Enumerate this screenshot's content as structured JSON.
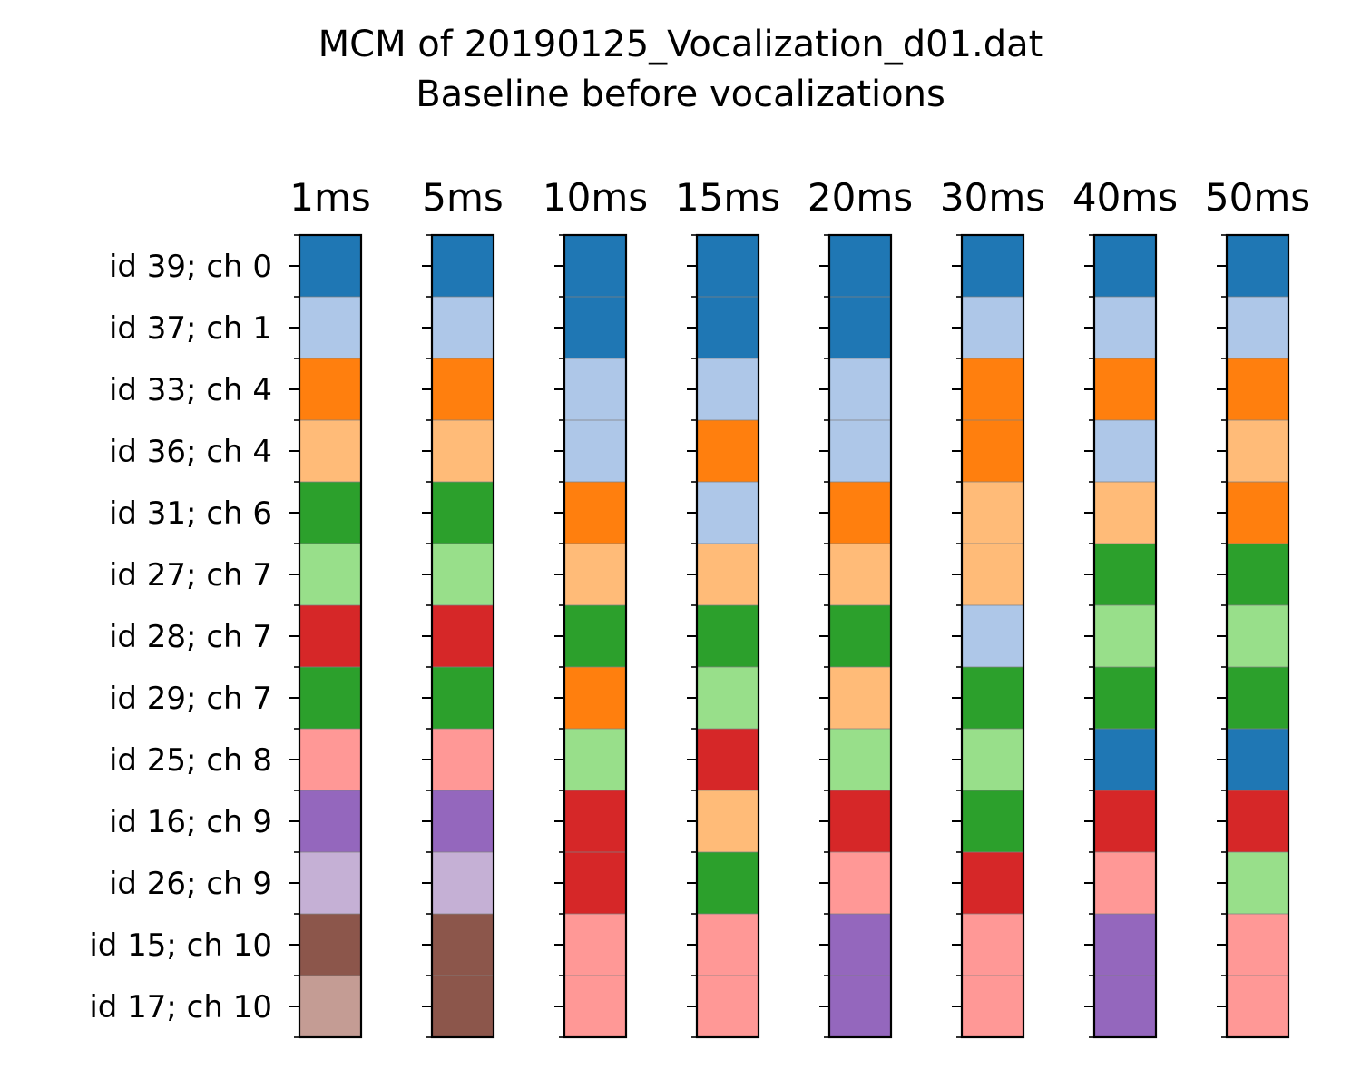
{
  "chart_data": {
    "type": "heatmap",
    "title_lines": [
      "MCM of 20190125_Vocalization_d01.dat",
      "Baseline before vocalizations"
    ],
    "columns": [
      "1ms",
      "5ms",
      "10ms",
      "15ms",
      "20ms",
      "30ms",
      "40ms",
      "50ms"
    ],
    "rows": [
      "id 39; ch 0",
      "id 37; ch 1",
      "id 33; ch 4",
      "id 36; ch 4",
      "id 31; ch 6",
      "id 27; ch 7",
      "id 28; ch 7",
      "id 29; ch 7",
      "id 25; ch 8",
      "id 16; ch 9",
      "id 26; ch 9",
      "id 15; ch 10",
      "id 17; ch 10"
    ],
    "palette": [
      "#1f77b4",
      "#aec7e8",
      "#ff7f0e",
      "#ffbb78",
      "#2ca02c",
      "#98df8a",
      "#d62728",
      "#ff9896",
      "#9467bd",
      "#c5b0d5",
      "#8c564b",
      "#c49c94"
    ],
    "cluster_assignments": [
      [
        0,
        1,
        2,
        3,
        4,
        5,
        6,
        4,
        7,
        8,
        9,
        10,
        11
      ],
      [
        0,
        1,
        2,
        3,
        4,
        5,
        6,
        4,
        7,
        8,
        9,
        10,
        10
      ],
      [
        0,
        0,
        1,
        1,
        2,
        3,
        4,
        2,
        5,
        6,
        6,
        7,
        7
      ],
      [
        0,
        0,
        1,
        2,
        1,
        3,
        4,
        5,
        6,
        3,
        4,
        7,
        7
      ],
      [
        0,
        0,
        1,
        1,
        2,
        3,
        4,
        3,
        5,
        6,
        7,
        8,
        8
      ],
      [
        0,
        1,
        2,
        2,
        3,
        3,
        1,
        4,
        5,
        4,
        6,
        7,
        7
      ],
      [
        0,
        1,
        2,
        1,
        3,
        4,
        5,
        4,
        0,
        6,
        7,
        8,
        8
      ],
      [
        0,
        1,
        2,
        3,
        2,
        4,
        5,
        4,
        0,
        6,
        5,
        7,
        7
      ]
    ]
  }
}
